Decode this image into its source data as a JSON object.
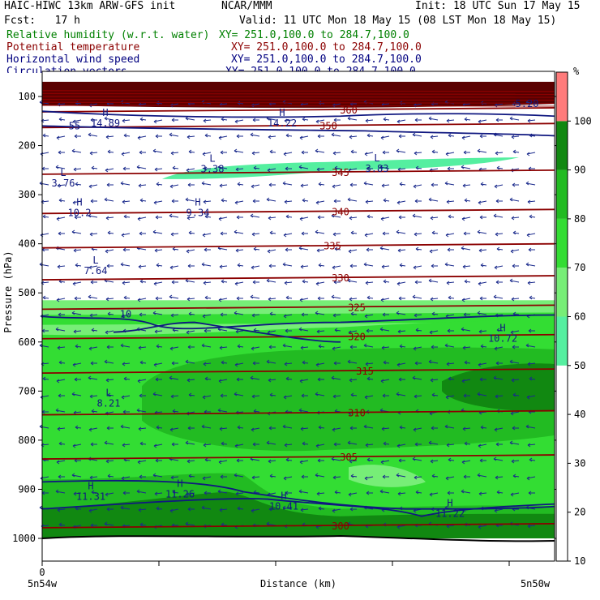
{
  "header": {
    "title": "HAIC-HIWC 13km ARW-GFS init",
    "org": "NCAR/MMM",
    "init": "Init: 18 UTC Sun 17 May 15",
    "fcst": "Fcst:   17 h",
    "valid": "Valid: 11 UTC Mon 18 May 15 (08 LST Mon 18 May 15)",
    "fields": [
      {
        "name": "Relative humidity (w.r.t. water)",
        "xy": "XY= 251.0,100.0 to 284.7,100.0",
        "color": "#008000"
      },
      {
        "name": "Potential temperature",
        "xy": "XY= 251.0,100.0 to 284.7,100.0",
        "color": "#8b0000"
      },
      {
        "name": "Horizontal wind speed",
        "xy": "XY= 251.0,100.0 to 284.7,100.0",
        "color": "#000080"
      },
      {
        "name": "Circulation vectors",
        "xy": "XY= 251.0,100.0 to 284.7,100.0",
        "color": "#000080"
      }
    ]
  },
  "chart_data": {
    "type": "heatmap",
    "description_type": "vertical cross-section",
    "ylabel": "Pressure (hPa)",
    "xlabel": "Distance (km)",
    "x_left_label": "5n54w",
    "x_right_label": "5n50w",
    "x_zero_label": "0",
    "y_ticks": [
      100,
      200,
      300,
      400,
      500,
      600,
      700,
      800,
      900,
      1000
    ],
    "ylim": [
      1000,
      70
    ],
    "colorbar": {
      "unit": "%",
      "ticks": [
        10,
        20,
        30,
        40,
        50,
        60,
        70,
        80,
        90,
        100
      ],
      "bins": [
        {
          "from": 50,
          "to": 60,
          "color": "#55efa0"
        },
        {
          "from": 60,
          "to": 70,
          "color": "#77ee77"
        },
        {
          "from": 70,
          "to": 80,
          "color": "#33dd33"
        },
        {
          "from": 80,
          "to": 90,
          "color": "#22bb22"
        },
        {
          "from": 90,
          "to": 100,
          "color": "#118811"
        },
        {
          "from": 100,
          "to": 110,
          "color": "#ff7b7b"
        }
      ]
    },
    "theta_contours": [
      {
        "label": "300",
        "p": 975
      },
      {
        "label": "305",
        "p": 835
      },
      {
        "label": "310",
        "p": 745
      },
      {
        "label": "315",
        "p": 660
      },
      {
        "label": "320",
        "p": 590
      },
      {
        "label": "325",
        "p": 530
      },
      {
        "label": "330",
        "p": 470
      },
      {
        "label": "335",
        "p": 405
      },
      {
        "label": "340",
        "p": 335
      },
      {
        "label": "345",
        "p": 255
      },
      {
        "label": "350",
        "p": 160
      },
      {
        "label": "360",
        "p": 128
      }
    ],
    "wind_labels": [
      {
        "label": "10",
        "kind": "contour"
      },
      {
        "label": "L",
        "value": "3.76"
      },
      {
        "label": "L",
        "value": "3.38"
      },
      {
        "label": "L",
        "value": "3.83"
      },
      {
        "label": "H",
        "value": "10.2"
      },
      {
        "label": "H",
        "value": "9.34"
      },
      {
        "label": "L",
        "value": "7.64"
      },
      {
        "label": "H",
        "value": "10.72"
      },
      {
        "label": "L",
        "value": "8.21"
      },
      {
        "label": "H",
        "value": "11.31"
      },
      {
        "label": "H",
        "value": "11.26"
      },
      {
        "label": "H",
        "value": "10.41"
      },
      {
        "label": "H",
        "value": "11.22"
      },
      {
        "label": "H",
        "value": "14.89"
      },
      {
        "label": "H",
        "value": "14.22"
      },
      {
        "label": "",
        "value": "5.20"
      },
      {
        "label": "",
        "value": "55"
      }
    ]
  }
}
